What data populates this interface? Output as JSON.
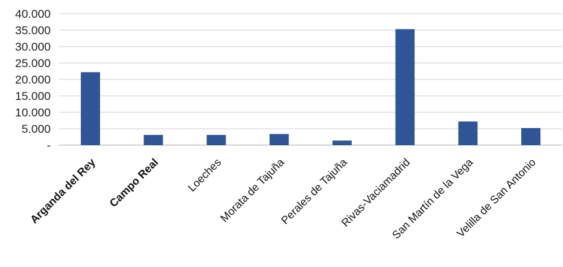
{
  "chart_data": {
    "type": "bar",
    "title": "",
    "xlabel": "",
    "ylabel": "",
    "categories": [
      "Arganda del Rey",
      "Campo Real",
      "Loeches",
      "Morata de Tajuña",
      "Perales de Tajuña",
      "Rivas-Vaciamadrid",
      "San Martín de la Vega",
      "Velilla de San Antonio"
    ],
    "bold_categories": [
      "Arganda del Rey",
      "Campo Real"
    ],
    "values": [
      22200,
      3100,
      3100,
      3400,
      1400,
      35300,
      7200,
      5200
    ],
    "ylim": [
      0,
      40000
    ],
    "yticks": [
      0,
      5000,
      10000,
      15000,
      20000,
      25000,
      30000,
      35000,
      40000
    ],
    "ytick_labels": [
      "-",
      "5.000",
      "10.000",
      "15.000",
      "20.000",
      "25.000",
      "30.000",
      "35.000",
      "40.000"
    ],
    "grid": true,
    "legend": "none",
    "bar_color": "#2f5597"
  }
}
